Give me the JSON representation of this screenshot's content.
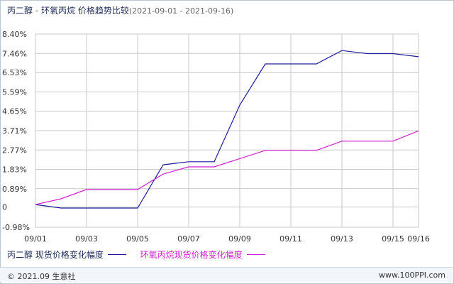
{
  "header": {
    "series_a": "丙二醇",
    "separator": " - ",
    "series_b": "环氧丙烷",
    "subtitle": "价格趋势比较",
    "date_range": "(2021-09-01 - 2021-09-16)"
  },
  "legend": {
    "item1": "丙二醇 现货价格变化幅度",
    "item2": "环氧丙烷现货价格变化幅度"
  },
  "footer": {
    "copyright": "© 2021.09 生意社",
    "site": "www.100PPI.com"
  },
  "watermark": {
    "name": "生意社",
    "url": "100PPI.COM"
  },
  "colors": {
    "series1": "#1c1c9c",
    "series2": "#d01fd0",
    "grid": "#c9c9c9",
    "axis": "#555555"
  },
  "chart_data": {
    "type": "line",
    "x": [
      "09/01",
      "09/02",
      "09/03",
      "09/04",
      "09/05",
      "09/06",
      "09/07",
      "09/08",
      "09/09",
      "09/10",
      "09/11",
      "09/12",
      "09/13",
      "09/14",
      "09/15",
      "09/16"
    ],
    "x_tick_labels": [
      "09/01",
      "09/03",
      "09/05",
      "09/07",
      "09/09",
      "09/11",
      "09/13",
      "09/15",
      "09/16"
    ],
    "y_tick_labels": [
      "8.40%",
      "7.46%",
      "6.53%",
      "5.59%",
      "4.65%",
      "3.71%",
      "2.77%",
      "1.83%",
      "0.89%",
      "0",
      "-0.98%"
    ],
    "y_ticks": [
      8.4,
      7.46,
      6.53,
      5.59,
      4.65,
      3.71,
      2.77,
      1.83,
      0.89,
      0,
      -0.98
    ],
    "ylim": [
      -0.98,
      8.4
    ],
    "grid": true,
    "legend_position": "bottom",
    "series": [
      {
        "name": "丙二醇 现货价格变化幅度",
        "color": "#1c1c9c",
        "values": [
          0.12,
          -0.05,
          -0.05,
          -0.05,
          -0.05,
          2.05,
          2.2,
          2.2,
          4.95,
          6.95,
          6.95,
          6.95,
          7.6,
          7.45,
          7.45,
          7.3
        ]
      },
      {
        "name": "环氧丙烷现货价格变化幅度",
        "color": "#d01fd0",
        "values": [
          0.12,
          0.4,
          0.85,
          0.85,
          0.85,
          1.6,
          1.95,
          1.95,
          2.35,
          2.75,
          2.75,
          2.75,
          3.2,
          3.2,
          3.2,
          3.7
        ]
      }
    ]
  }
}
